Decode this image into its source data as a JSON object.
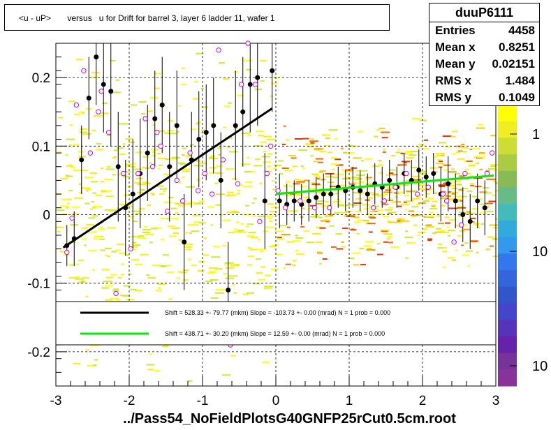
{
  "title": "<u - uP>       versus   u for Drift for barrel 3, layer 6 ladder 11, wafer 1",
  "stats": {
    "name": "duuP6111",
    "rows": [
      {
        "label": "Entries",
        "value": "4458"
      },
      {
        "label": "Mean x",
        "value": "0.8251"
      },
      {
        "label": "Mean y",
        "value": "0.02151"
      },
      {
        "label": "RMS x",
        "value": "1.484"
      },
      {
        "label": "RMS y",
        "value": "0.1049"
      }
    ]
  },
  "footer": "../Pass54_NoFieldPlotsG40GNFP25rCut0.5cm.root",
  "chart_data": {
    "type": "scatter",
    "xlim": [
      -3,
      3
    ],
    "ylim": [
      -0.25,
      0.25
    ],
    "x_ticks": [
      "-3",
      "-2",
      "-1",
      "0",
      "1",
      "2",
      "3"
    ],
    "y_ticks": [
      "-0.2",
      "-0.1",
      "0",
      "0.1",
      "0.2"
    ],
    "colorbar_labels": [
      "1",
      "10",
      "10"
    ],
    "legend": [
      {
        "color": "#000000",
        "text": "Shift =   528.33 +- 79.77 (mkm) Slope =   -103.73 +- 0.00 (mrad)  N = 1 prob = 0.000"
      },
      {
        "color": "#00ee00",
        "text": "Shift =   438.71 +- 30.20 (mkm) Slope =    12.59 +- 0.00 (mrad)  N = 1 prob = 0.000"
      }
    ],
    "fit_lines": [
      {
        "color": "#000000",
        "x": [
          -2.9,
          -0.05
        ],
        "y": [
          -0.048,
          0.155
        ]
      },
      {
        "color": "#00ee00",
        "x": [
          0.0,
          2.97
        ],
        "y": [
          0.03,
          0.057
        ]
      }
    ],
    "profile_points": {
      "x": [
        -2.85,
        -2.75,
        -2.65,
        -2.55,
        -2.45,
        -2.35,
        -2.25,
        -2.15,
        -2.05,
        -1.95,
        -1.85,
        -1.75,
        -1.65,
        -1.55,
        -1.45,
        -1.35,
        -1.25,
        -1.15,
        -1.05,
        -0.95,
        -0.85,
        -0.75,
        -0.65,
        -0.55,
        -0.45,
        -0.35,
        -0.25,
        -0.15,
        -0.05,
        0.05,
        0.15,
        0.25,
        0.35,
        0.45,
        0.55,
        0.65,
        0.75,
        0.85,
        0.95,
        1.05,
        1.15,
        1.25,
        1.35,
        1.45,
        1.55,
        1.65,
        1.75,
        1.85,
        1.95,
        2.05,
        2.15,
        2.25,
        2.35,
        2.45,
        2.55,
        2.65,
        2.75,
        2.85
      ],
      "y": [
        -0.045,
        -0.035,
        0.08,
        0.17,
        0.23,
        0.19,
        0.18,
        0.07,
        0.01,
        0.03,
        0.06,
        0.09,
        0.14,
        0.16,
        0.07,
        0.13,
        -0.04,
        0.08,
        0.11,
        0.12,
        0.13,
        0.05,
        -0.11,
        0.13,
        0.15,
        0.19,
        0.2,
        0.02,
        0.21,
        0.02,
        0.015,
        0.02,
        0.015,
        0.02,
        0.025,
        0.03,
        0.03,
        0.04,
        0.035,
        0.04,
        0.035,
        0.03,
        0.045,
        0.04,
        0.05,
        0.04,
        0.06,
        0.05,
        0.065,
        0.055,
        0.06,
        0.03,
        0.045,
        0.02,
        0.0,
        -0.01,
        0.02,
        0.01
      ],
      "y_err": [
        0.03,
        0.04,
        0.05,
        0.06,
        0.07,
        0.07,
        0.08,
        0.08,
        0.07,
        0.08,
        0.08,
        0.07,
        0.07,
        0.07,
        0.08,
        0.08,
        0.07,
        0.07,
        0.07,
        0.07,
        0.07,
        0.07,
        0.07,
        0.08,
        0.08,
        0.07,
        0.07,
        0.07,
        0.06,
        0.04,
        0.03,
        0.03,
        0.03,
        0.03,
        0.03,
        0.03,
        0.03,
        0.03,
        0.03,
        0.03,
        0.03,
        0.03,
        0.03,
        0.03,
        0.03,
        0.03,
        0.03,
        0.03,
        0.03,
        0.03,
        0.03,
        0.04,
        0.04,
        0.04,
        0.04,
        0.04,
        0.04,
        0.04
      ]
    },
    "open_markers": {
      "x": [
        -2.85,
        -2.78,
        -2.72,
        -2.62,
        -2.53,
        -2.42,
        -2.38,
        -2.28,
        -2.18,
        -2.08,
        -1.98,
        -1.88,
        -1.78,
        -1.68,
        -1.62,
        -1.57,
        -1.48,
        -1.35,
        -1.27,
        -1.17,
        -1.06,
        -0.97,
        -0.87,
        -0.78,
        -0.72,
        -0.62,
        -0.52,
        -0.47,
        -0.38,
        -0.28,
        -0.22,
        -0.12,
        -0.07,
        0.03,
        0.13,
        0.33,
        0.53,
        0.73,
        1.33,
        1.48,
        1.63,
        1.78,
        1.93,
        2.08,
        2.28,
        2.33,
        2.43,
        2.53,
        2.58,
        2.88,
        2.95
      ],
      "y": [
        -0.055,
        -0.005,
        0.16,
        0.21,
        0.09,
        0.15,
        0.18,
        0.12,
        -0.115,
        0.06,
        -0.05,
        0.06,
        0.14,
        0.07,
        0.12,
        0.1,
        0.005,
        0.05,
        0.02,
        0.09,
        0.035,
        0.06,
        0.03,
        0.24,
        0.08,
        -0.19,
        0.045,
        0.19,
        0.25,
        0.19,
        -0.01,
        0.06,
        0.1,
        0.035,
        0.01,
        0.02,
        0.01,
        0.01,
        0.01,
        0.02,
        0.04,
        0.06,
        0.03,
        0.04,
        0.03,
        0.02,
        -0.04,
        -0.015,
        0.06,
        0.06,
        0.09
      ]
    }
  }
}
